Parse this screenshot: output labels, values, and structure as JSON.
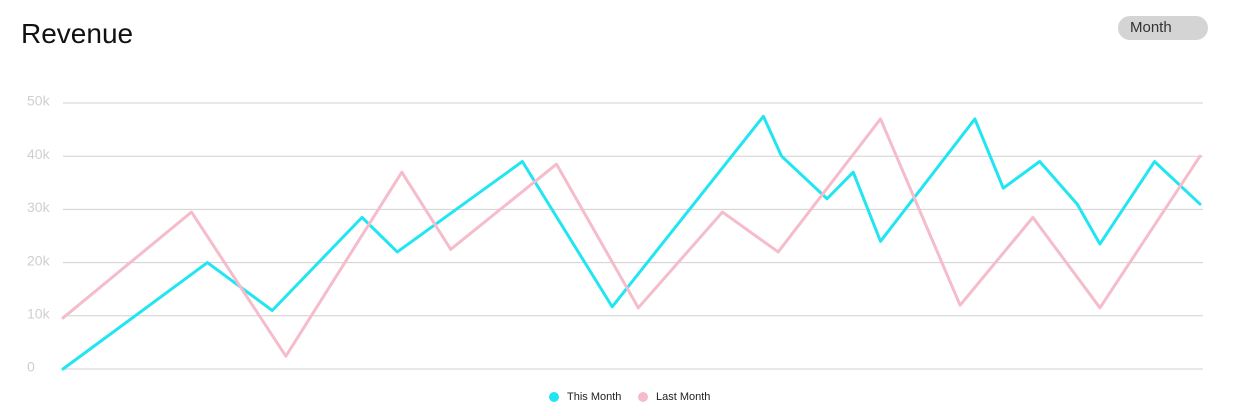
{
  "chart_data": {
    "type": "line",
    "title": "Revenue",
    "button": "Month",
    "xlim": [
      0,
      100
    ],
    "ylim": [
      0,
      50000
    ],
    "yticks": [
      0,
      {
        "value": 10000,
        "label": "10k"
      },
      {
        "value": 20000,
        "label": "20k"
      },
      {
        "value": 30000,
        "label": "30k"
      },
      {
        "value": 40000,
        "label": "40k"
      },
      {
        "value": 50000,
        "label": "50k"
      }
    ],
    "grid": true,
    "legend": "bottom",
    "series": [
      {
        "name": "This Month",
        "color": "#22e5f2",
        "x": [
          0,
          12.7,
          18.4,
          26.3,
          29.4,
          40.4,
          48.3,
          61.6,
          63.2,
          67.2,
          69.5,
          71.9,
          80.2,
          82.7,
          85.9,
          89.2,
          91.2,
          96.0,
          100
        ],
        "values": [
          0,
          20000,
          11000,
          28500,
          22000,
          39000,
          11700,
          47500,
          40000,
          32000,
          37000,
          24000,
          47000,
          34000,
          39000,
          31000,
          23500,
          39000,
          31000
        ]
      },
      {
        "name": "Last Month",
        "color": "#f5bccb",
        "x": [
          0,
          11.3,
          19.6,
          29.8,
          34.1,
          43.4,
          50.6,
          58.0,
          62.9,
          71.9,
          78.9,
          85.3,
          91.2,
          100
        ],
        "values": [
          9600,
          29500,
          2400,
          37000,
          22500,
          38500,
          11500,
          29500,
          22000,
          47000,
          12000,
          28500,
          11500,
          40000
        ]
      }
    ]
  }
}
